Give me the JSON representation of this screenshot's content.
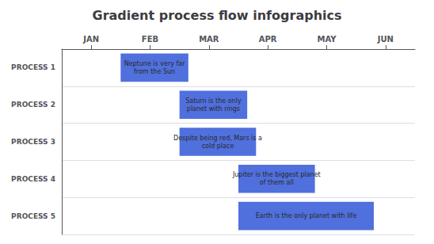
{
  "chart_data": {
    "type": "gantt",
    "title": "Gradient process flow infographics",
    "categories": [
      "PROCESS 1",
      "PROCESS 2",
      "PROCESS 3",
      "PROCESS 4",
      "PROCESS 5"
    ],
    "start": [
      1,
      2,
      2,
      3,
      3
    ],
    "end": [
      2.15,
      3.15,
      3.3,
      4.3,
      5.3
    ],
    "bar_labels": [
      "Neptune is very far\nfrom the Sun",
      "Saturn is the only\nplanet with rings",
      "Despite being red, Mars is a\ncold place",
      "Jupiter is the biggest planet\nof them all",
      "Earth is the only planet with life"
    ],
    "xlim": [
      0,
      6
    ],
    "xticks": [
      {
        "value": 0.5,
        "label": "JAN"
      },
      {
        "value": 1.5,
        "label": "FEB"
      },
      {
        "value": 2.5,
        "label": "MAR"
      },
      {
        "value": 3.5,
        "label": "APR"
      },
      {
        "value": 4.5,
        "label": "MAY"
      },
      {
        "value": 5.5,
        "label": "JUN"
      }
    ],
    "grid": true
  }
}
